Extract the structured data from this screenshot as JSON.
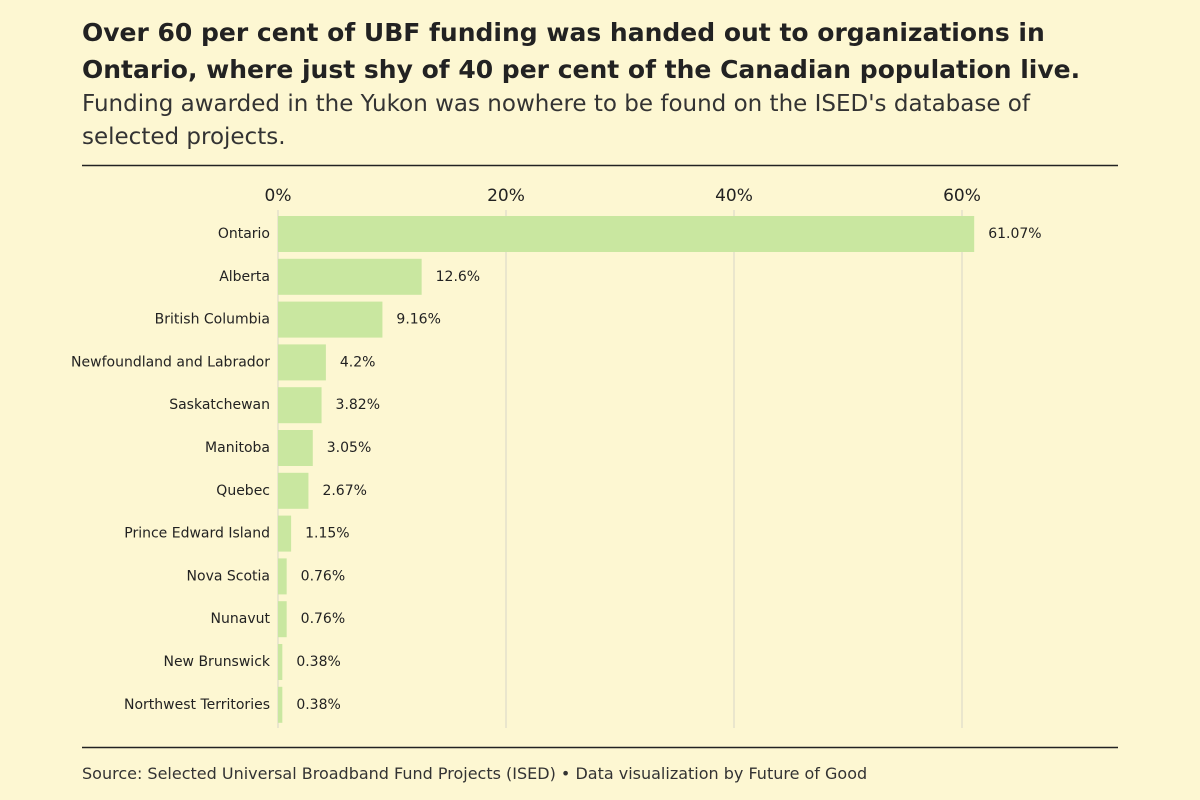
{
  "chart_data": {
    "type": "bar",
    "orientation": "horizontal",
    "title": "Over 60 per cent of UBF funding was handed out to organizations in Ontario, where just shy of 40 per cent of the Canadian population live.",
    "subtitle": "Funding awarded in the Yukon was nowhere to be found on the ISED's database of selected projects.",
    "source": "Source: Selected Universal Broadband Fund Projects (ISED) • Data visualization by Future of Good",
    "categories": [
      "Ontario",
      "Alberta",
      "British Columbia",
      "Newfoundland and Labrador",
      "Saskatchewan",
      "Manitoba",
      "Quebec",
      "Prince Edward Island",
      "Nova Scotia",
      "Nunavut",
      "New Brunswick",
      "Northwest Territories"
    ],
    "values": [
      61.07,
      12.6,
      9.16,
      4.2,
      3.82,
      3.05,
      2.67,
      1.15,
      0.76,
      0.76,
      0.38,
      0.38
    ],
    "value_labels": [
      "61.07%",
      "12.6%",
      "9.16%",
      "4.2%",
      "3.82%",
      "3.05%",
      "2.67%",
      "1.15%",
      "0.76%",
      "0.76%",
      "0.38%",
      "0.38%"
    ],
    "color": "#c9e7a0",
    "xlim": [
      0,
      70
    ],
    "xticks": [
      {
        "value": 0,
        "label": "0%"
      },
      {
        "value": 20,
        "label": "20%"
      },
      {
        "value": 40,
        "label": "40%"
      },
      {
        "value": 60,
        "label": "60%"
      }
    ],
    "grid": true
  }
}
